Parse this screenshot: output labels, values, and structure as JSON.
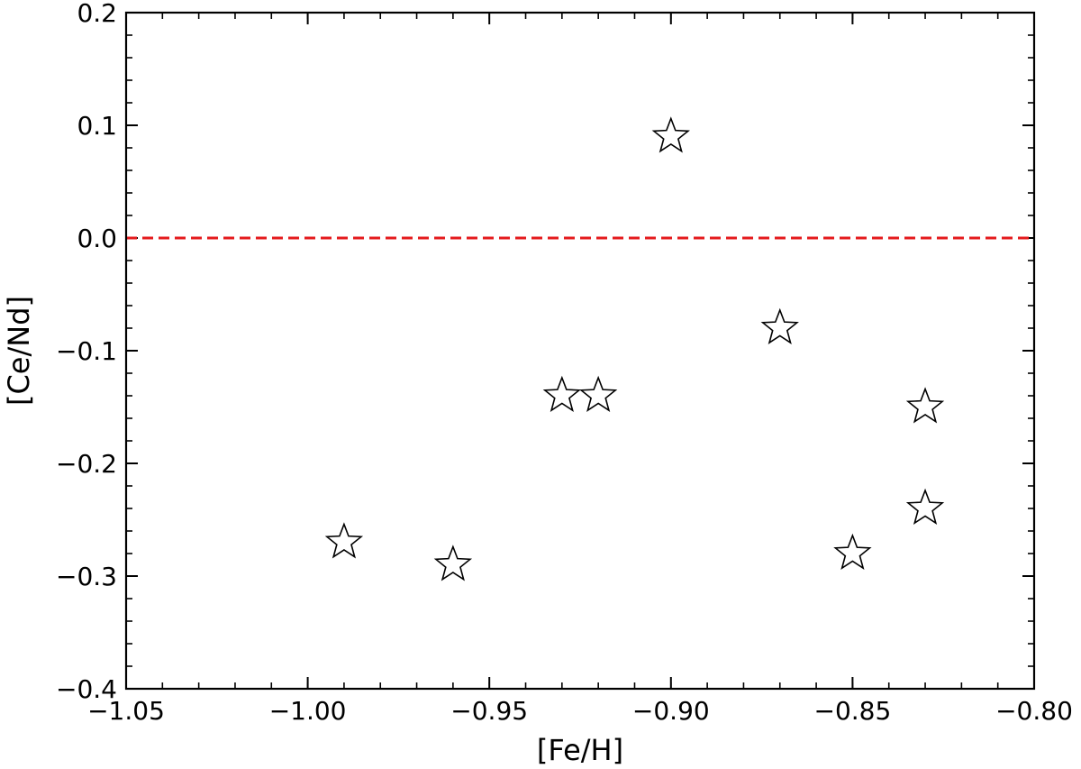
{
  "chart_data": {
    "type": "scatter",
    "title": "",
    "xlabel": "[Fe/H]",
    "ylabel": "[Ce/Nd]",
    "xlim": [
      -1.05,
      -0.8
    ],
    "ylim": [
      -0.4,
      0.2
    ],
    "xticks": [
      -1.05,
      -1.0,
      -0.95,
      -0.9,
      -0.85,
      -0.8
    ],
    "xtick_labels": [
      "−1.05",
      "−1.00",
      "−0.95",
      "−0.90",
      "−0.85",
      "−0.80"
    ],
    "yticks": [
      -0.4,
      -0.3,
      -0.2,
      -0.1,
      0.0,
      0.1,
      0.2
    ],
    "ytick_labels": [
      "−0.4",
      "−0.3",
      "−0.2",
      "−0.1",
      "0.0",
      "0.1",
      "0.2"
    ],
    "x_minor_step": 0.01,
    "y_minor_step": 0.02,
    "grid": false,
    "legend": "none",
    "marker": "star",
    "marker_fill": "#ffffff",
    "marker_edge": "#000000",
    "reference_line": {
      "y": 0.0,
      "style": "dashed",
      "color": "#e41a1c"
    },
    "points": [
      {
        "x": -0.99,
        "y": -0.27
      },
      {
        "x": -0.96,
        "y": -0.29
      },
      {
        "x": -0.93,
        "y": -0.14
      },
      {
        "x": -0.92,
        "y": -0.14
      },
      {
        "x": -0.9,
        "y": 0.09
      },
      {
        "x": -0.87,
        "y": -0.08
      },
      {
        "x": -0.85,
        "y": -0.28
      },
      {
        "x": -0.83,
        "y": -0.15
      },
      {
        "x": -0.83,
        "y": -0.24
      }
    ]
  }
}
